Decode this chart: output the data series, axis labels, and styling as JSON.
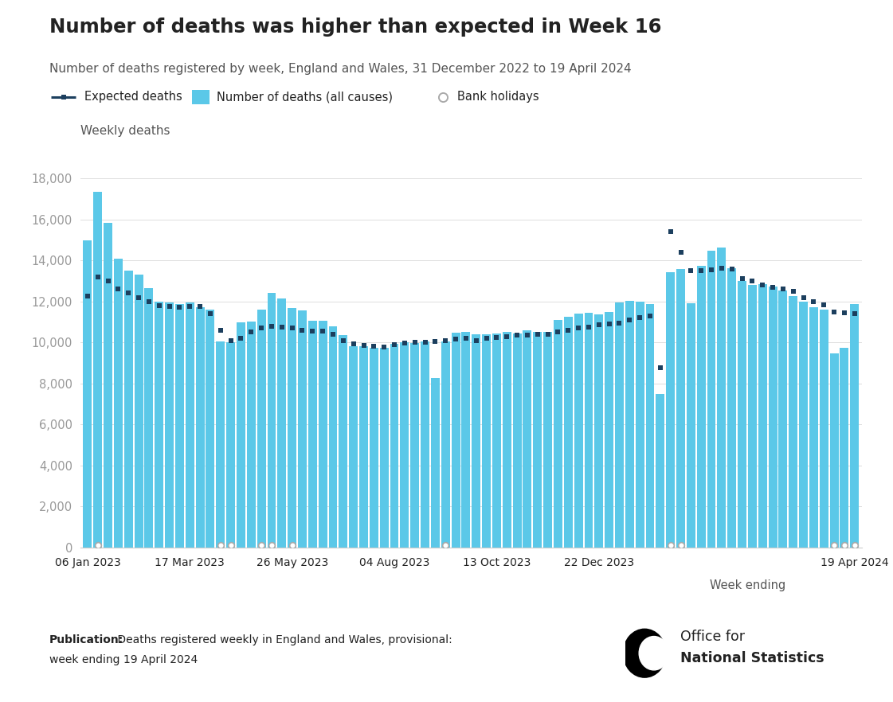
{
  "title": "Number of deaths was higher than expected in Week 16",
  "subtitle": "Number of deaths registered by week, England and Wales, 31 December 2022 to 19 April 2024",
  "ylabel": "Weekly deaths",
  "xlabel": "Week ending",
  "pub_bold": "Publication:",
  "pub_normal": " Deaths registered weekly in England and Wales, provisional:",
  "pub_line2": "week ending 19 April 2024",
  "bar_color": "#5bc8e8",
  "expected_color": "#1c3f5e",
  "bh_edge_color": "#aaaaaa",
  "background_color": "#ffffff",
  "grid_color": "#dddddd",
  "spine_color": "#cccccc",
  "text_dark": "#222222",
  "text_mid": "#555555",
  "text_light": "#999999",
  "ylim_max": 19000,
  "yticks": [
    0,
    2000,
    4000,
    6000,
    8000,
    10000,
    12000,
    14000,
    16000,
    18000
  ],
  "deaths": [
    14983,
    17334,
    15830,
    14103,
    13496,
    13314,
    12655,
    12002,
    11950,
    11861,
    11964,
    11735,
    11622,
    10068,
    10026,
    10994,
    11032,
    11611,
    12435,
    12155,
    11666,
    11558,
    11065,
    11078,
    10780,
    10369,
    9815,
    9827,
    9749,
    9760,
    9954,
    10015,
    9978,
    10060,
    8285,
    10038,
    10484,
    10512,
    10404,
    10391,
    10436,
    10529,
    10444,
    10587,
    10504,
    10504,
    11087,
    11270,
    11406,
    11465,
    11359,
    11503,
    11937,
    12019,
    11999,
    11869,
    7493,
    13420,
    13571,
    11933,
    13730,
    14477,
    14630,
    13619,
    12989,
    12803,
    12861,
    12733,
    12545,
    12277,
    11988,
    11731,
    11614,
    9468,
    9760,
    11877
  ],
  "expected": [
    12281,
    13200,
    13000,
    12600,
    12400,
    12200,
    12000,
    11800,
    11760,
    11720,
    11750,
    11760,
    11400,
    10600,
    10100,
    10200,
    10500,
    10700,
    10800,
    10750,
    10700,
    10600,
    10550,
    10560,
    10400,
    10100,
    9950,
    9850,
    9800,
    9780,
    9900,
    9990,
    10000,
    10020,
    10050,
    10100,
    10150,
    10200,
    10100,
    10200,
    10250,
    10300,
    10350,
    10380,
    10400,
    10420,
    10500,
    10600,
    10700,
    10750,
    10850,
    10900,
    10950,
    11100,
    11200,
    11300,
    8770,
    15400,
    14380,
    13490,
    13500,
    13550,
    13640,
    13580,
    13100,
    12990,
    12800,
    12700,
    12600,
    12500,
    12200,
    12000,
    11850,
    11500,
    11450,
    11400
  ],
  "bank_holiday_indices": [
    1,
    13,
    14,
    17,
    18,
    20,
    35,
    57,
    58,
    73,
    74,
    75
  ],
  "xtick_positions": [
    0,
    10,
    20,
    30,
    40,
    50,
    75
  ],
  "xtick_labels": [
    "06 Jan 2023",
    "17 Mar 2023",
    "26 May 2023",
    "04 Aug 2023",
    "13 Oct 2023",
    "22 Dec 2023",
    "19 Apr 2024"
  ]
}
